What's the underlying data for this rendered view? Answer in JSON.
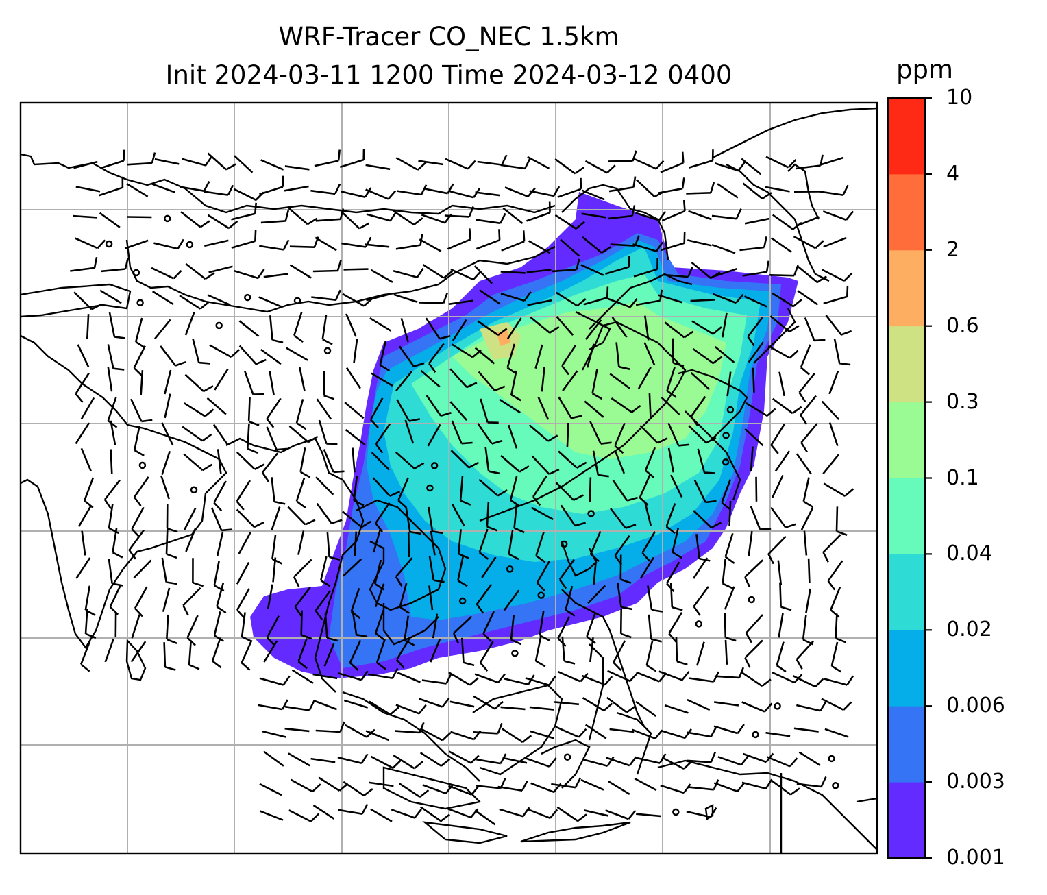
{
  "title": {
    "line1": "WRF-Tracer CO_NEC 1.5km",
    "line2": "Init 2024-03-11 1200 Time 2024-03-12 0400"
  },
  "colorbar": {
    "unit": "ppm",
    "levels": [
      "0.001",
      "0.003",
      "0.006",
      "0.02",
      "0.04",
      "0.1",
      "0.3",
      "0.6",
      "2",
      "4",
      "10"
    ],
    "colors": [
      "#632bff",
      "#3474f5",
      "#05aee9",
      "#2fdbd5",
      "#66fabb",
      "#9afa94",
      "#cfe283",
      "#feae61",
      "#ff6e3a",
      "#ff2a15"
    ]
  },
  "map": {
    "gridlines": true,
    "overlay": "wind barbs",
    "plume_color_low": "#632bff",
    "plume_color_mid": "#2fdbd5",
    "plume_color_high": "#9afa94"
  }
}
